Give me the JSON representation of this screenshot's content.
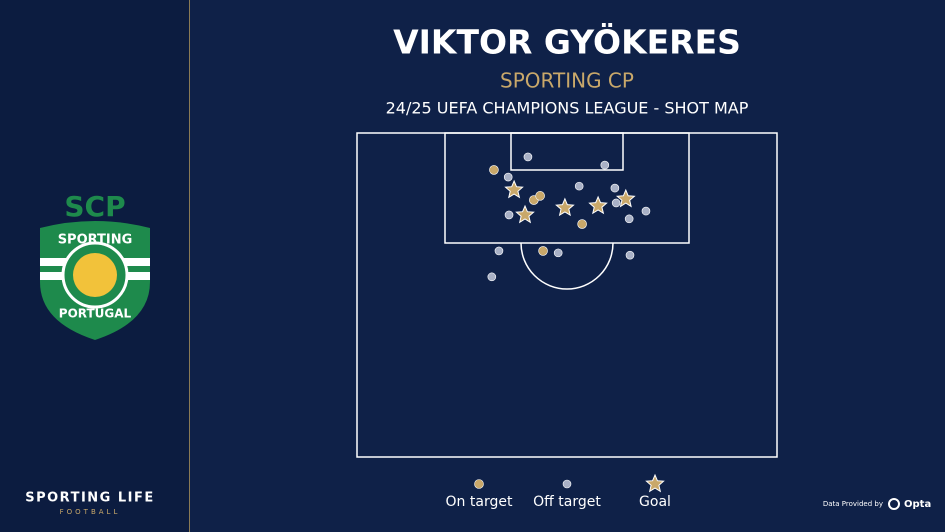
{
  "chart_data": {
    "type": "scatter",
    "title": "VIKTOR GYÖKERES",
    "subtitle": "SPORTING CP",
    "caption": "24/25 UEFA CHAMPIONS LEAGUE - SHOT MAP",
    "xlim": [
      0,
      100
    ],
    "ylim": [
      0,
      100
    ],
    "series": [
      {
        "name": "On target",
        "color": "#c9a86a",
        "marker": "circle",
        "x": [
          32.6,
          42.1,
          43.6,
          53.6,
          44.3
        ],
        "y": [
          11.4,
          20.7,
          19.4,
          28.1,
          36.4
        ]
      },
      {
        "name": "Off target",
        "color": "#a9b1c6",
        "marker": "circle",
        "x": [
          40.7,
          59.0,
          36.0,
          52.9,
          61.4,
          61.7,
          68.8,
          64.8,
          36.2,
          33.8,
          47.9,
          65.0,
          32.1
        ],
        "y": [
          7.4,
          9.9,
          13.6,
          16.4,
          17.0,
          21.6,
          24.1,
          26.5,
          25.3,
          36.4,
          37.0,
          37.7,
          44.4
        ]
      },
      {
        "name": "Goal",
        "color": "#c9a86a",
        "marker": "star",
        "x": [
          37.4,
          49.5,
          57.4,
          64.0,
          40.0
        ],
        "y": [
          17.6,
          23.1,
          22.5,
          20.4,
          25.3
        ]
      }
    ]
  },
  "logo": {
    "top": "SCP",
    "ring_top": "SPORTING",
    "ring_bottom": "PORTUGAL"
  },
  "branding": {
    "name": "SPORTING LIFE",
    "section": "FOOTBALL",
    "provider_prefix": "Data Provided by",
    "provider": "Opta"
  }
}
